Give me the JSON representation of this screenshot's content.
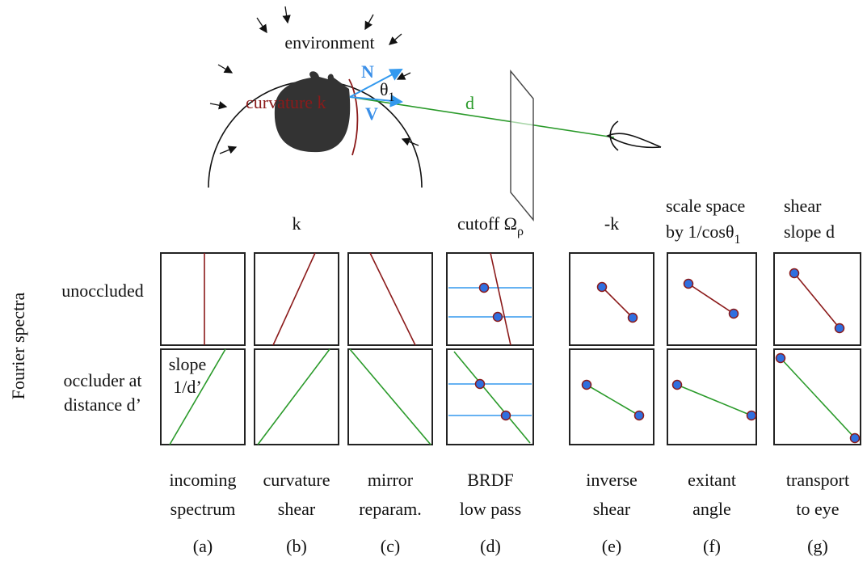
{
  "scene": {
    "environment": "environment",
    "normal": "N",
    "angle": [
      {
        "base": "θ"
      },
      {
        "sub": "1"
      }
    ],
    "curvature": "curvature k",
    "view": "V",
    "distance": "d"
  },
  "axis_label": "Fourier spectra",
  "rows": [
    {
      "lines": [
        "unoccluded"
      ]
    },
    {
      "lines": [
        "occluder at",
        "distance d’"
      ]
    }
  ],
  "annotation": [
    "slope",
    "1/d’"
  ],
  "columns": [
    {
      "caption": [
        "incoming",
        "spectrum"
      ],
      "letter": "(a)"
    },
    {
      "header": [
        [
          {
            "base": "k"
          }
        ]
      ],
      "caption": [
        "curvature",
        "shear"
      ],
      "letter": "(b)"
    },
    {
      "caption": [
        "mirror",
        "reparam."
      ],
      "letter": "(c)"
    },
    {
      "header": [
        [
          {
            "base": "cutoff Ω"
          },
          {
            "sub": "ρ"
          }
        ]
      ],
      "caption": [
        "BRDF",
        "low pass"
      ],
      "letter": "(d)"
    },
    {
      "header": [
        [
          {
            "base": "-k"
          }
        ]
      ],
      "caption": [
        "inverse",
        "shear"
      ],
      "letter": "(e)"
    },
    {
      "header": [
        [
          {
            "base": "scale space"
          }
        ],
        [
          {
            "base": "by 1/cosθ"
          },
          {
            "sub": "1"
          }
        ]
      ],
      "caption": [
        "exitant",
        "angle"
      ],
      "letter": "(f)"
    },
    {
      "header": [
        [
          {
            "base": "shear"
          }
        ],
        [
          {
            "base": "slope  d"
          }
        ]
      ],
      "caption": [
        "transport",
        "to eye"
      ],
      "letter": "(g)"
    }
  ]
}
